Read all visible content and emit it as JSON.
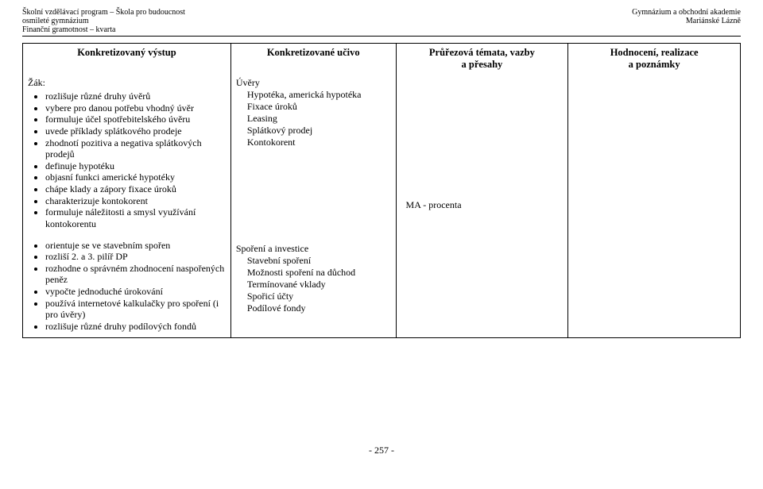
{
  "header": {
    "top_left_1": "Školní vzdělávací program – Škola pro budoucnost",
    "top_left_2": "osmileté gymnázium",
    "top_left_3": "Finanční gramotnost – kvarta",
    "top_right_1": "Gymnázium a obchodní akademie",
    "top_right_2": "Mariánské Lázně"
  },
  "columns": {
    "c0": "Konkretizovaný výstup",
    "c1": "Konkretizované učivo",
    "c2_line1": "Průřezová témata, vazby",
    "c2_line2": "a přesahy",
    "c3_line1": "Hodnocení, realizace",
    "c3_line2": "a poznámky"
  },
  "row1": {
    "left_lead": "Žák:",
    "bullets": [
      "rozlišuje různé druhy úvěrů",
      "vybere pro danou potřebu vhodný úvěr",
      "formuluje účel spotřebitelského úvěru",
      "uvede příklady splátkového prodeje",
      "zhodnotí pozitiva a negativa splátkových prodejů",
      "definuje hypotéku",
      "objasní funkci americké hypotéky",
      "chápe klady a zápory fixace úroků",
      "charakterizuje kontokorent",
      "formuluje náležitosti a smysl využívání kontokorentu"
    ],
    "mid_lead": "Úvěry",
    "mid_items": [
      "Hypotéka, americká hypotéka",
      "Fixace úroků",
      "Leasing",
      "Splátkový prodej",
      "Kontokorent"
    ],
    "cross": "MA - procenta"
  },
  "row2": {
    "bullets": [
      "orientuje se ve stavebním spořen",
      "rozliší 2. a 3. pilíř DP",
      "rozhodne o správném zhodnocení naspořených peněz",
      "vypočte jednoduché úrokování",
      "používá internetové kalkulačky pro spoření (i pro úvěry)",
      "rozlišuje různé druhy podílových fondů"
    ],
    "mid_lead": "Spoření a investice",
    "mid_items": [
      "Stavební spoření",
      "Možnosti spoření na důchod",
      "Termínované vklady",
      "Spořicí účty",
      "Podílové fondy"
    ]
  },
  "footer": "- 257 -",
  "style": {
    "background": "#ffffff",
    "text": "#000000",
    "border": "#000000",
    "header_fontsize": 10,
    "body_fontsize": 12
  }
}
